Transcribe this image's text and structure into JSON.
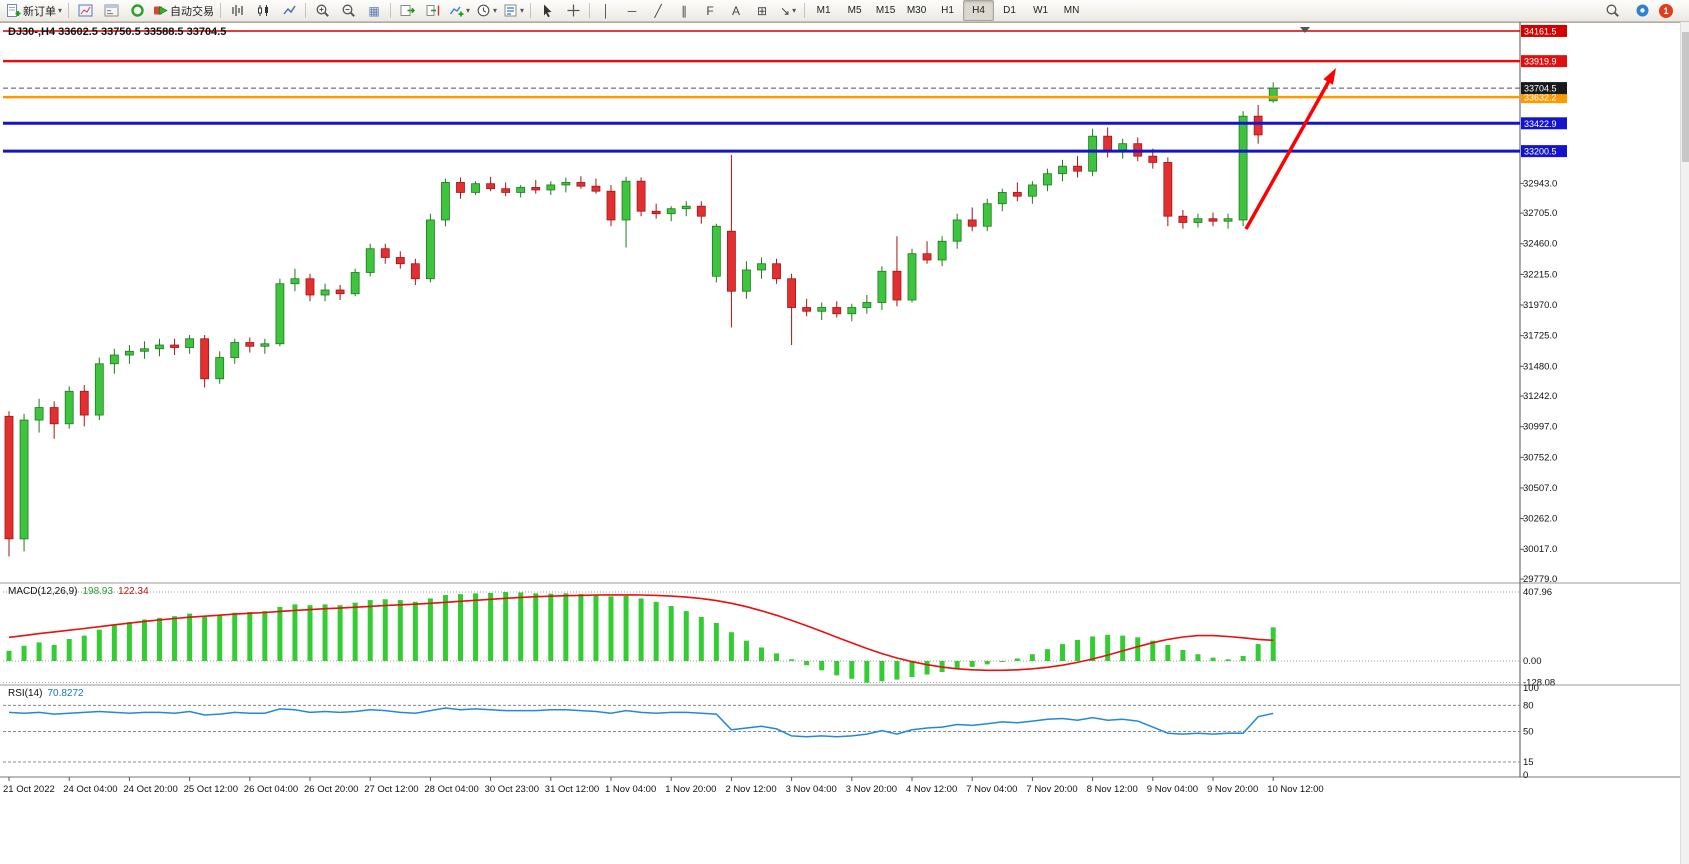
{
  "toolbar": {
    "new_order": "新订单",
    "autotrading": "自动交易",
    "timeframes": [
      "M1",
      "M5",
      "M15",
      "M30",
      "H1",
      "H4",
      "D1",
      "W1",
      "MN"
    ],
    "active_timeframe": "H4",
    "notification_count": "1"
  },
  "icons": {
    "caret": "▾",
    "vertical_line": "│",
    "horizontal_line": "─",
    "trendline": "╱",
    "channel": "∥",
    "fibonacci": "F",
    "text_label": "A",
    "text_box": "⊞",
    "arrows_tool": "↘",
    "tile_windows": "▦"
  },
  "chart": {
    "title": "DJ30-,H4  33602.5 33750.5 33588.5 33704.5",
    "symbol": "DJ30-",
    "period": "H4",
    "ohlc": {
      "open": "33602.5",
      "high": "33750.5",
      "low": "33588.5",
      "close": "33704.5"
    }
  },
  "indicators": {
    "macd": {
      "label": "MACD(12,26,9)",
      "value_main": "198.93",
      "value_signal": "122.34"
    },
    "rsi": {
      "label": "RSI(14)",
      "value": "70.8272"
    }
  },
  "chart_data": {
    "type": "candlestick",
    "symbol": "DJ30-",
    "timeframe": "H4",
    "price_range": [
      29763,
      34185
    ],
    "price_axis_ticks": [
      32943.0,
      32705.0,
      32460.0,
      32215.0,
      31970.0,
      31725.0,
      31480.0,
      31242.0,
      30997.0,
      30752.0,
      30507.0,
      30262.0,
      30017.0,
      29779.0
    ],
    "x_label_every_n_candles": 4,
    "x_labels": [
      "21 Oct 2022",
      "24 Oct 04:00",
      "24 Oct 20:00",
      "25 Oct 12:00",
      "26 Oct 04:00",
      "26 Oct 20:00",
      "27 Oct 12:00",
      "28 Oct 04:00",
      "30 Oct 23:00",
      "31 Oct 12:00",
      "1 Nov 04:00",
      "1 Nov 20:00",
      "2 Nov 12:00",
      "3 Nov 04:00",
      "3 Nov 20:00",
      "4 Nov 12:00",
      "7 Nov 04:00",
      "7 Nov 20:00",
      "8 Nov 12:00",
      "9 Nov 04:00",
      "9 Nov 20:00",
      "10 Nov 12:00"
    ],
    "candles_ohlc": [
      [
        31080,
        31120,
        29960,
        30100
      ],
      [
        30100,
        31100,
        30000,
        31050
      ],
      [
        31050,
        31220,
        30950,
        31150
      ],
      [
        31150,
        31200,
        30900,
        31020
      ],
      [
        31020,
        31320,
        30980,
        31280
      ],
      [
        31280,
        31330,
        31000,
        31090
      ],
      [
        31090,
        31550,
        31050,
        31500
      ],
      [
        31500,
        31620,
        31420,
        31570
      ],
      [
        31570,
        31650,
        31500,
        31600
      ],
      [
        31600,
        31680,
        31540,
        31620
      ],
      [
        31620,
        31700,
        31560,
        31650
      ],
      [
        31650,
        31700,
        31570,
        31630
      ],
      [
        31630,
        31730,
        31580,
        31700
      ],
      [
        31700,
        31730,
        31310,
        31380
      ],
      [
        31380,
        31600,
        31340,
        31550
      ],
      [
        31550,
        31700,
        31500,
        31670
      ],
      [
        31670,
        31710,
        31590,
        31640
      ],
      [
        31640,
        31700,
        31580,
        31660
      ],
      [
        31660,
        32180,
        31640,
        32140
      ],
      [
        32140,
        32260,
        32080,
        32180
      ],
      [
        32180,
        32220,
        32000,
        32050
      ],
      [
        32050,
        32140,
        32000,
        32090
      ],
      [
        32090,
        32130,
        32010,
        32060
      ],
      [
        32060,
        32260,
        32040,
        32230
      ],
      [
        32230,
        32460,
        32200,
        32420
      ],
      [
        32420,
        32460,
        32300,
        32350
      ],
      [
        32350,
        32400,
        32260,
        32300
      ],
      [
        32300,
        32340,
        32130,
        32180
      ],
      [
        32180,
        32700,
        32150,
        32650
      ],
      [
        32650,
        32980,
        32600,
        32950
      ],
      [
        32950,
        32990,
        32820,
        32870
      ],
      [
        32870,
        32960,
        32850,
        32940
      ],
      [
        32940,
        32995,
        32880,
        32900
      ],
      [
        32900,
        32950,
        32840,
        32870
      ],
      [
        32870,
        32930,
        32830,
        32910
      ],
      [
        32910,
        32970,
        32860,
        32890
      ],
      [
        32890,
        32960,
        32850,
        32930
      ],
      [
        32930,
        32990,
        32870,
        32950
      ],
      [
        32950,
        33000,
        32900,
        32920
      ],
      [
        32920,
        32980,
        32860,
        32880
      ],
      [
        32880,
        32930,
        32600,
        32650
      ],
      [
        32650,
        32995,
        32430,
        32960
      ],
      [
        32960,
        32990,
        32680,
        32720
      ],
      [
        32720,
        32780,
        32660,
        32700
      ],
      [
        32700,
        32760,
        32640,
        32740
      ],
      [
        32740,
        32800,
        32680,
        32760
      ],
      [
        32760,
        32800,
        32620,
        32680
      ],
      [
        32200,
        32620,
        32150,
        32600
      ],
      [
        32560,
        33170,
        31790,
        32080
      ],
      [
        32080,
        32320,
        32020,
        32250
      ],
      [
        32250,
        32350,
        32180,
        32300
      ],
      [
        32300,
        32340,
        32140,
        32180
      ],
      [
        32180,
        32220,
        31650,
        31950
      ],
      [
        31950,
        32020,
        31880,
        31920
      ],
      [
        31920,
        31990,
        31850,
        31950
      ],
      [
        31950,
        32000,
        31870,
        31900
      ],
      [
        31900,
        31980,
        31840,
        31950
      ],
      [
        31950,
        32050,
        31900,
        31990
      ],
      [
        31990,
        32280,
        31930,
        32240
      ],
      [
        32240,
        32520,
        31960,
        32010
      ],
      [
        32010,
        32420,
        31990,
        32380
      ],
      [
        32380,
        32480,
        32300,
        32330
      ],
      [
        32330,
        32520,
        32280,
        32480
      ],
      [
        32480,
        32700,
        32420,
        32650
      ],
      [
        32650,
        32750,
        32560,
        32600
      ],
      [
        32600,
        32820,
        32560,
        32780
      ],
      [
        32780,
        32900,
        32720,
        32870
      ],
      [
        32870,
        32950,
        32800,
        32840
      ],
      [
        32840,
        32960,
        32780,
        32930
      ],
      [
        32930,
        33060,
        32880,
        33020
      ],
      [
        33020,
        33130,
        32960,
        33080
      ],
      [
        33080,
        33160,
        32990,
        33040
      ],
      [
        33040,
        33380,
        33000,
        33320
      ],
      [
        33320,
        33390,
        33150,
        33200
      ],
      [
        33200,
        33300,
        33140,
        33260
      ],
      [
        33260,
        33310,
        33120,
        33160
      ],
      [
        33160,
        33220,
        33060,
        33110
      ],
      [
        33110,
        33150,
        32600,
        32680
      ],
      [
        32680,
        32730,
        32580,
        32630
      ],
      [
        32630,
        32700,
        32590,
        32660
      ],
      [
        32660,
        32710,
        32600,
        32640
      ],
      [
        32640,
        32700,
        32580,
        32660
      ],
      [
        32650,
        33520,
        32600,
        33480
      ],
      [
        33480,
        33570,
        33260,
        33330
      ],
      [
        33602.5,
        33750.5,
        33588.5,
        33704.5
      ]
    ],
    "hlines": [
      {
        "price": 34161.5,
        "label": "34161.5",
        "color": "#d40000",
        "width": 1.5
      },
      {
        "price": 33919.9,
        "label": "33919.9",
        "color": "#e01010",
        "width": 2.5
      },
      {
        "price": 33632.2,
        "label": "33632.2",
        "color": "#ff9900",
        "width": 2.5
      },
      {
        "price": 33422.9,
        "label": "33422.9",
        "color": "#1414cc",
        "width": 3
      },
      {
        "price": 33200.5,
        "label": "33200.5",
        "color": "#1414cc",
        "width": 3
      }
    ],
    "current_price": {
      "value": 33704.5,
      "label": "33704.5",
      "box_color": "#1a1a1a"
    },
    "annotation_arrow": {
      "color": "#ff0000",
      "from": [
        1246,
        207
      ],
      "to": [
        1336,
        46
      ]
    },
    "macd": {
      "params": "12,26,9",
      "axis_ticks": [
        {
          "value": 407.96,
          "label": "407.96"
        },
        {
          "value": 0,
          "label": "0.00"
        },
        {
          "value": -128.08,
          "label": "-128.08"
        }
      ],
      "histogram": [
        60,
        90,
        110,
        95,
        130,
        150,
        185,
        210,
        230,
        245,
        255,
        265,
        280,
        260,
        270,
        285,
        290,
        295,
        320,
        335,
        330,
        335,
        330,
        345,
        360,
        365,
        360,
        350,
        370,
        390,
        395,
        400,
        402,
        407.96,
        405,
        400,
        398,
        400,
        396,
        390,
        382,
        385,
        370,
        350,
        325,
        295,
        260,
        225,
        170,
        120,
        80,
        45,
        10,
        -25,
        -55,
        -85,
        -105,
        -128.08,
        -120,
        -110,
        -95,
        -80,
        -65,
        -50,
        -35,
        -20,
        -5,
        15,
        40,
        70,
        100,
        125,
        145,
        155,
        150,
        140,
        120,
        95,
        65,
        40,
        20,
        10,
        30,
        100,
        198.93
      ],
      "signal": [
        140,
        150,
        162,
        172,
        182,
        192,
        203,
        214,
        224,
        234,
        243,
        251,
        259,
        265,
        271,
        277,
        282,
        287,
        293,
        299,
        304,
        309,
        313,
        318,
        323,
        328,
        332,
        336,
        341,
        347,
        353,
        359,
        365,
        371,
        376,
        380,
        383,
        386,
        388,
        390,
        391,
        391,
        390,
        388,
        384,
        378,
        369,
        357,
        341,
        321,
        297,
        270,
        240,
        208,
        175,
        141,
        107,
        74,
        44,
        18,
        -4,
        -22,
        -36,
        -46,
        -52,
        -55,
        -55,
        -52,
        -46,
        -37,
        -25,
        -8,
        12,
        35,
        60,
        85,
        108,
        128,
        142,
        150,
        150,
        145,
        137,
        128,
        122.34
      ]
    },
    "rsi": {
      "period": 14,
      "levels": [
        80,
        50,
        15
      ],
      "axis_ticks": [
        {
          "value": 100,
          "label": "100"
        },
        {
          "value": 80,
          "label": "80"
        },
        {
          "value": 50,
          "label": "50"
        },
        {
          "value": 15,
          "label": "15"
        },
        {
          "value": 0,
          "label": "0"
        }
      ],
      "values": [
        72,
        71,
        72,
        70,
        71,
        72,
        73,
        72,
        71,
        72,
        72,
        71,
        73,
        69,
        70,
        72,
        71,
        71,
        76,
        75,
        72,
        73,
        72,
        73,
        75,
        74,
        72,
        71,
        74,
        77,
        75,
        76,
        75,
        74,
        74,
        74,
        75,
        75,
        74,
        73,
        71,
        74,
        72,
        71,
        72,
        72,
        71,
        70,
        52,
        54,
        56,
        53,
        45,
        44,
        45,
        44,
        45,
        47,
        51,
        47,
        52,
        54,
        55,
        58,
        57,
        59,
        61,
        60,
        62,
        64,
        65,
        63,
        66,
        63,
        64,
        62,
        55,
        48,
        47,
        48,
        47,
        48,
        48,
        67,
        70.83
      ]
    },
    "colors": {
      "bull": "#3fc43f",
      "bear": "#e23030",
      "macd_hist": "#33cc33",
      "macd_signal": "#e81010",
      "rsi_line": "#2288dd"
    }
  }
}
